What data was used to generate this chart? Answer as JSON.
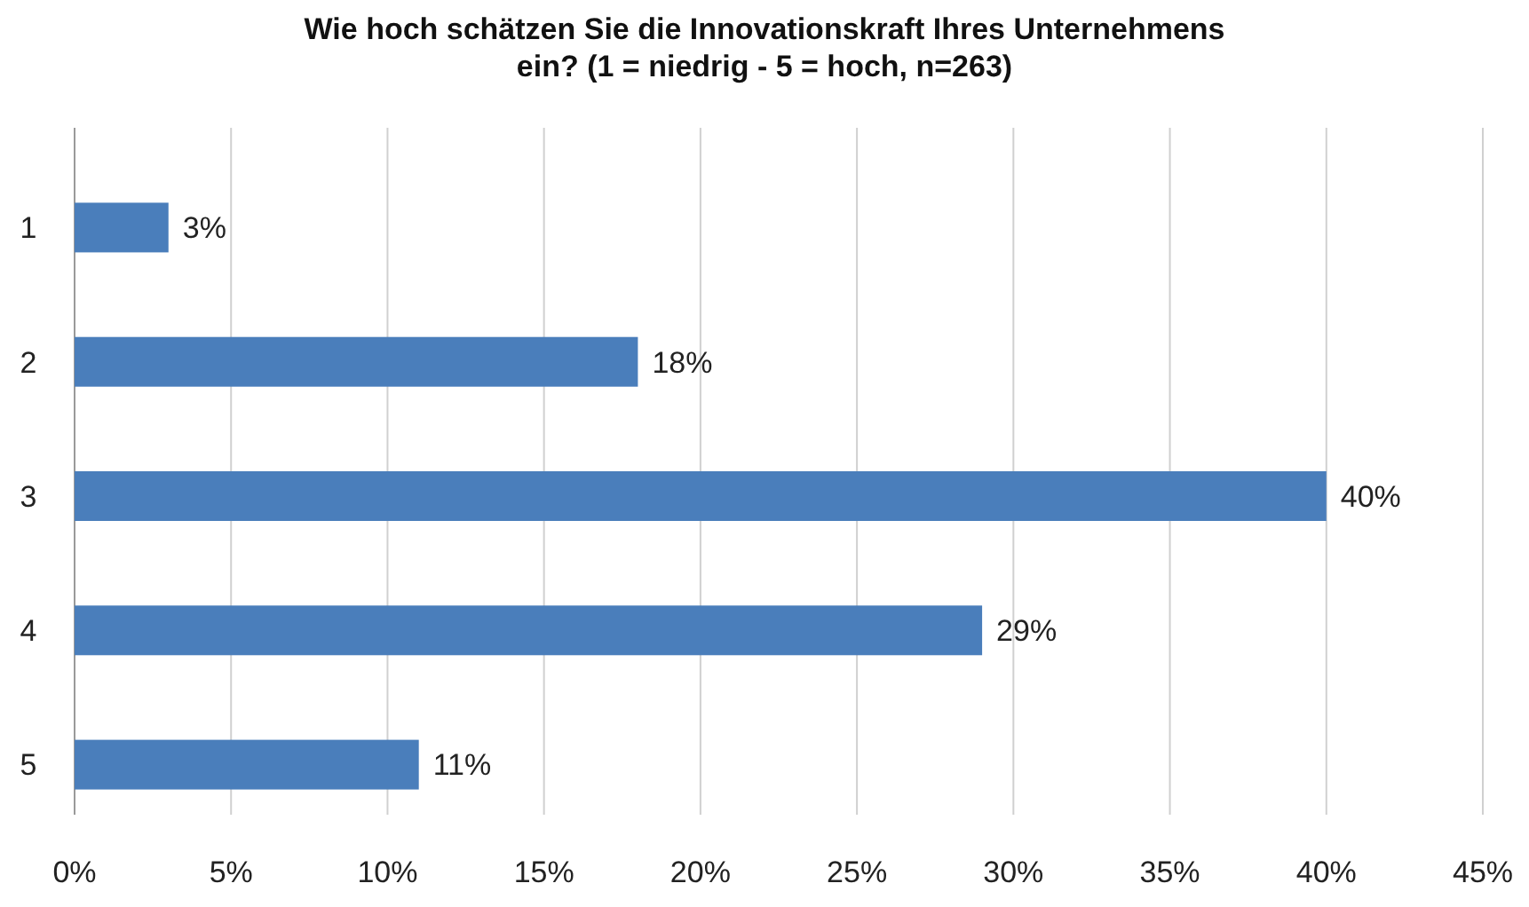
{
  "chart_data": {
    "type": "bar",
    "orientation": "horizontal",
    "title": "Wie hoch schätzen Sie die Innovationskraft Ihres Unternehmens ein? (1 = niedrig - 5 = hoch, n=263)",
    "categories": [
      "1",
      "2",
      "3",
      "4",
      "5"
    ],
    "values": [
      3,
      18,
      40,
      29,
      11
    ],
    "value_labels": [
      "3%",
      "18%",
      "40%",
      "29%",
      "11%"
    ],
    "color": "#4a7ebb",
    "xlim": [
      0,
      45
    ],
    "xticks": [
      {
        "value": 0,
        "label": "0%"
      },
      {
        "value": 5,
        "label": "5%"
      },
      {
        "value": 10,
        "label": "10%"
      },
      {
        "value": 15,
        "label": "15%"
      },
      {
        "value": 20,
        "label": "20%"
      },
      {
        "value": 25,
        "label": "25%"
      },
      {
        "value": 30,
        "label": "30%"
      },
      {
        "value": 35,
        "label": "35%"
      },
      {
        "value": 40,
        "label": "40%"
      },
      {
        "value": 45,
        "label": "45%"
      }
    ],
    "grid": "x"
  }
}
